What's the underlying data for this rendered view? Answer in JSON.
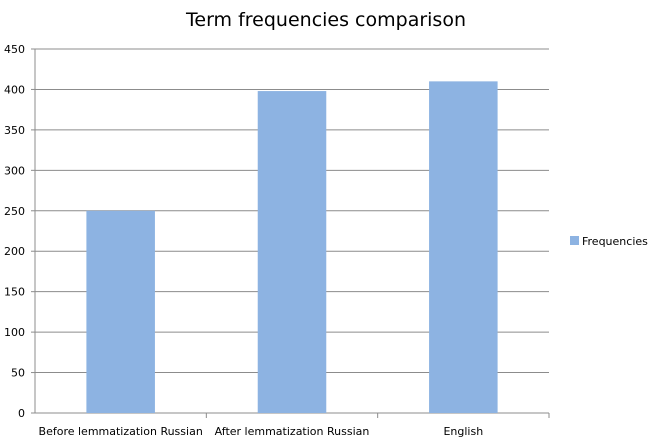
{
  "chart_data": {
    "type": "bar",
    "title": "Term frequencies comparison",
    "xlabel": "",
    "ylabel": "",
    "categories": [
      "Before lemmatization Russian",
      "After lemmatization Russian",
      "English"
    ],
    "series": [
      {
        "name": "Frequencies",
        "values": [
          250,
          398,
          410
        ],
        "color": "#8db3e2"
      }
    ],
    "ylim": [
      0,
      450
    ],
    "yticks": [
      0,
      50,
      100,
      150,
      200,
      250,
      300,
      350,
      400,
      450
    ],
    "grid": true,
    "legend_position": "right"
  }
}
